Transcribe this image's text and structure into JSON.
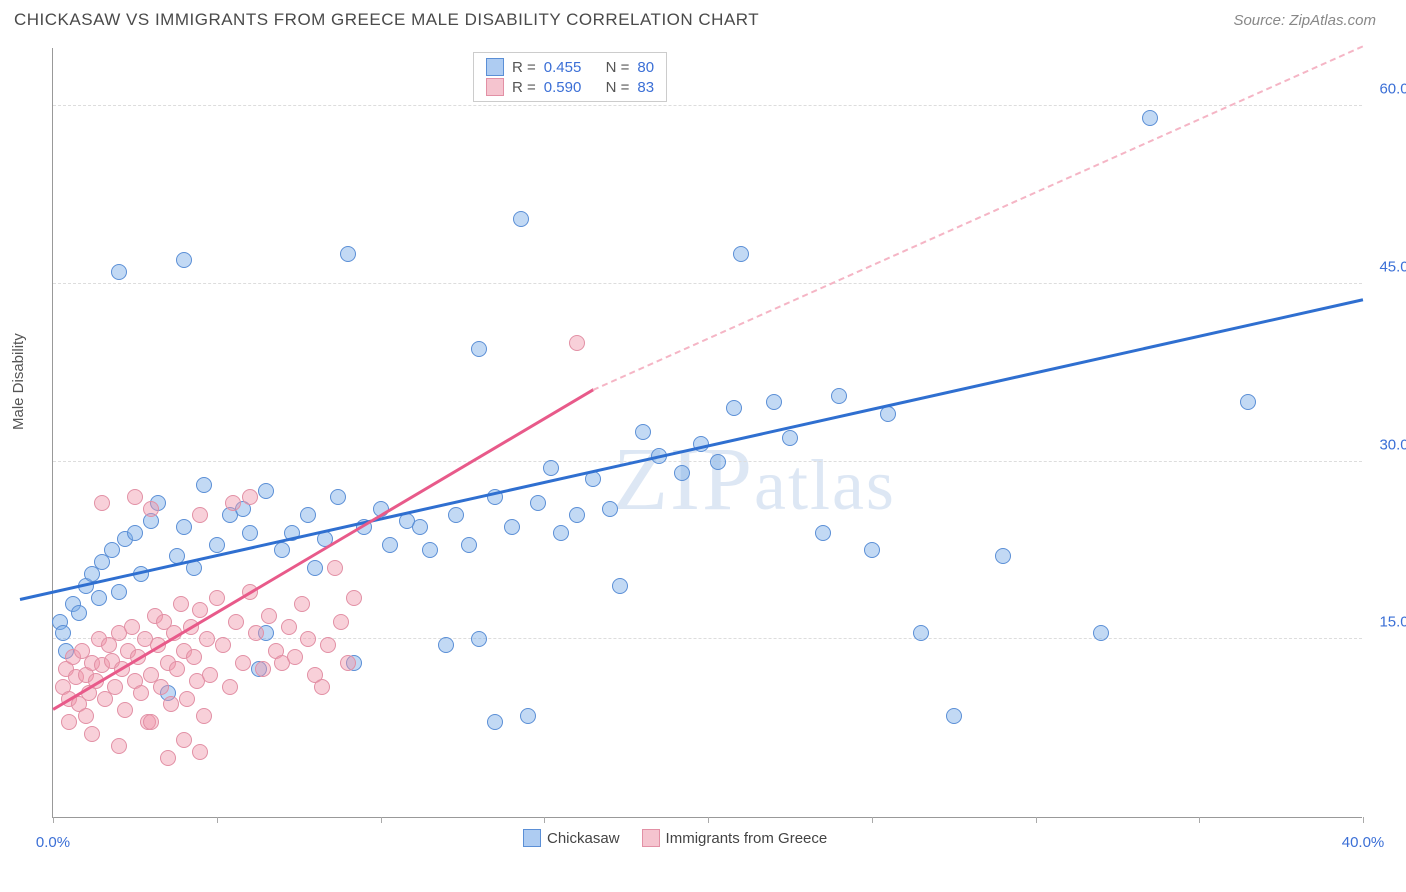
{
  "title": "CHICKASAW VS IMMIGRANTS FROM GREECE MALE DISABILITY CORRELATION CHART",
  "source": "Source: ZipAtlas.com",
  "ylabel": "Male Disability",
  "watermark": "ZIPatlas",
  "chart": {
    "type": "scatter",
    "xlim": [
      0,
      40
    ],
    "ylim": [
      0,
      65
    ],
    "yticks": [
      15,
      30,
      45,
      60
    ],
    "ytick_labels": [
      "15.0%",
      "30.0%",
      "45.0%",
      "60.0%"
    ],
    "xticks": [
      0,
      5,
      10,
      15,
      20,
      25,
      30,
      35,
      40
    ],
    "xtick_labels": [
      "0.0%",
      "",
      "",
      "",
      "",
      "",
      "",
      "",
      "40.0%"
    ],
    "background_color": "#ffffff",
    "grid_color": "#dddddd",
    "axis_color": "#999999",
    "tick_label_color": "#3b6fd6",
    "marker_radius": 8,
    "series": [
      {
        "name": "Chickasaw",
        "label": "Chickasaw",
        "fill": "rgba(120,170,230,0.45)",
        "stroke": "#5b8fd6",
        "swatch_fill": "#aeccf2",
        "swatch_border": "#5b8fd6",
        "R": "0.455",
        "N": "80",
        "trend": {
          "x1": -1,
          "y1": 18.2,
          "x2": 40,
          "y2": 43.5,
          "color": "#2f6fd0",
          "width": 3
        },
        "points": [
          [
            0.2,
            16.5
          ],
          [
            0.3,
            15.5
          ],
          [
            0.4,
            14.0
          ],
          [
            0.6,
            18.0
          ],
          [
            0.8,
            17.2
          ],
          [
            1.0,
            19.5
          ],
          [
            1.2,
            20.5
          ],
          [
            1.4,
            18.5
          ],
          [
            1.5,
            21.5
          ],
          [
            1.8,
            22.5
          ],
          [
            2.0,
            19.0
          ],
          [
            2.2,
            23.5
          ],
          [
            2.5,
            24.0
          ],
          [
            2.7,
            20.5
          ],
          [
            3.0,
            25.0
          ],
          [
            3.2,
            26.5
          ],
          [
            3.5,
            10.5
          ],
          [
            3.8,
            22.0
          ],
          [
            4.0,
            24.5
          ],
          [
            4.3,
            21.0
          ],
          [
            4.6,
            28.0
          ],
          [
            2.0,
            46.0
          ],
          [
            5.0,
            23.0
          ],
          [
            4.0,
            47.0
          ],
          [
            5.4,
            25.5
          ],
          [
            5.8,
            26.0
          ],
          [
            6.0,
            24.0
          ],
          [
            6.3,
            12.5
          ],
          [
            6.5,
            27.5
          ],
          [
            7.0,
            22.5
          ],
          [
            7.3,
            24.0
          ],
          [
            7.8,
            25.5
          ],
          [
            8.0,
            21.0
          ],
          [
            8.3,
            23.5
          ],
          [
            8.7,
            27.0
          ],
          [
            9.0,
            47.5
          ],
          [
            9.2,
            13.0
          ],
          [
            9.5,
            24.5
          ],
          [
            10.0,
            26.0
          ],
          [
            10.3,
            23.0
          ],
          [
            10.8,
            25.0
          ],
          [
            11.2,
            24.5
          ],
          [
            11.5,
            22.5
          ],
          [
            12.0,
            14.5
          ],
          [
            12.3,
            25.5
          ],
          [
            12.7,
            23.0
          ],
          [
            13.0,
            39.5
          ],
          [
            13.0,
            15.0
          ],
          [
            13.5,
            27.0
          ],
          [
            14.0,
            24.5
          ],
          [
            14.3,
            50.5
          ],
          [
            14.8,
            26.5
          ],
          [
            15.2,
            29.5
          ],
          [
            15.5,
            24.0
          ],
          [
            16.0,
            25.5
          ],
          [
            16.5,
            28.5
          ],
          [
            17.0,
            26.0
          ],
          [
            17.3,
            19.5
          ],
          [
            18.0,
            32.5
          ],
          [
            14.5,
            8.5
          ],
          [
            18.5,
            30.5
          ],
          [
            19.2,
            29.0
          ],
          [
            19.8,
            31.5
          ],
          [
            20.3,
            30.0
          ],
          [
            20.8,
            34.5
          ],
          [
            21.0,
            47.5
          ],
          [
            22.0,
            35.0
          ],
          [
            22.5,
            32.0
          ],
          [
            23.5,
            24.0
          ],
          [
            24.0,
            35.5
          ],
          [
            25.0,
            22.5
          ],
          [
            25.5,
            34.0
          ],
          [
            26.5,
            15.5
          ],
          [
            27.5,
            8.5
          ],
          [
            29.0,
            22.0
          ],
          [
            32.0,
            15.5
          ],
          [
            33.5,
            59.0
          ],
          [
            36.5,
            35.0
          ],
          [
            13.5,
            8.0
          ],
          [
            6.5,
            15.5
          ]
        ]
      },
      {
        "name": "Immigrants from Greece",
        "label": "Immigrants from Greece",
        "fill": "rgba(240,150,170,0.45)",
        "stroke": "#e290a5",
        "swatch_fill": "#f5c4cf",
        "swatch_border": "#e290a5",
        "R": "0.590",
        "N": "83",
        "trend_solid": {
          "x1": 0,
          "y1": 9.0,
          "x2": 16.5,
          "y2": 36.0,
          "color": "#e85a8a",
          "width": 2.5
        },
        "trend_dash": {
          "x1": 16.5,
          "y1": 36.0,
          "x2": 40,
          "y2": 65.0,
          "color": "#f5b5c5",
          "width": 2
        },
        "points": [
          [
            0.3,
            11.0
          ],
          [
            0.4,
            12.5
          ],
          [
            0.5,
            10.0
          ],
          [
            0.6,
            13.5
          ],
          [
            0.7,
            11.8
          ],
          [
            0.8,
            9.5
          ],
          [
            0.9,
            14.0
          ],
          [
            1.0,
            12.0
          ],
          [
            1.1,
            10.5
          ],
          [
            1.2,
            13.0
          ],
          [
            1.3,
            11.5
          ],
          [
            1.4,
            15.0
          ],
          [
            1.5,
            12.8
          ],
          [
            1.6,
            10.0
          ],
          [
            1.7,
            14.5
          ],
          [
            1.8,
            13.2
          ],
          [
            1.9,
            11.0
          ],
          [
            2.0,
            15.5
          ],
          [
            2.1,
            12.5
          ],
          [
            2.2,
            9.0
          ],
          [
            2.3,
            14.0
          ],
          [
            2.4,
            16.0
          ],
          [
            2.5,
            11.5
          ],
          [
            2.6,
            13.5
          ],
          [
            2.7,
            10.5
          ],
          [
            2.8,
            15.0
          ],
          [
            2.9,
            8.0
          ],
          [
            3.0,
            12.0
          ],
          [
            3.1,
            17.0
          ],
          [
            3.2,
            14.5
          ],
          [
            3.3,
            11.0
          ],
          [
            3.4,
            16.5
          ],
          [
            3.5,
            13.0
          ],
          [
            3.6,
            9.5
          ],
          [
            3.7,
            15.5
          ],
          [
            3.8,
            12.5
          ],
          [
            3.9,
            18.0
          ],
          [
            4.0,
            14.0
          ],
          [
            4.1,
            10.0
          ],
          [
            4.2,
            16.0
          ],
          [
            4.3,
            13.5
          ],
          [
            4.4,
            11.5
          ],
          [
            4.5,
            17.5
          ],
          [
            4.6,
            8.5
          ],
          [
            4.7,
            15.0
          ],
          [
            4.8,
            12.0
          ],
          [
            5.0,
            18.5
          ],
          [
            5.2,
            14.5
          ],
          [
            5.4,
            11.0
          ],
          [
            5.6,
            16.5
          ],
          [
            5.8,
            13.0
          ],
          [
            6.0,
            19.0
          ],
          [
            6.2,
            15.5
          ],
          [
            6.4,
            12.5
          ],
          [
            6.6,
            17.0
          ],
          [
            6.8,
            14.0
          ],
          [
            7.0,
            13.0
          ],
          [
            7.2,
            16.0
          ],
          [
            7.4,
            13.5
          ],
          [
            7.6,
            18.0
          ],
          [
            7.8,
            15.0
          ],
          [
            8.0,
            12.0
          ],
          [
            8.2,
            11.0
          ],
          [
            8.4,
            14.5
          ],
          [
            8.6,
            21.0
          ],
          [
            8.8,
            16.5
          ],
          [
            9.0,
            13.0
          ],
          [
            9.2,
            18.5
          ],
          [
            1.5,
            26.5
          ],
          [
            2.5,
            27.0
          ],
          [
            3.0,
            26.0
          ],
          [
            3.5,
            5.0
          ],
          [
            4.0,
            6.5
          ],
          [
            4.5,
            25.5
          ],
          [
            5.5,
            26.5
          ],
          [
            6.0,
            27.0
          ],
          [
            2.0,
            6.0
          ],
          [
            4.5,
            5.5
          ],
          [
            3.0,
            8.0
          ],
          [
            1.0,
            8.5
          ],
          [
            16.0,
            40.0
          ],
          [
            0.5,
            8.0
          ],
          [
            1.2,
            7.0
          ]
        ]
      }
    ]
  },
  "legend": {
    "stat_r_label": "R =",
    "stat_n_label": "N ="
  }
}
